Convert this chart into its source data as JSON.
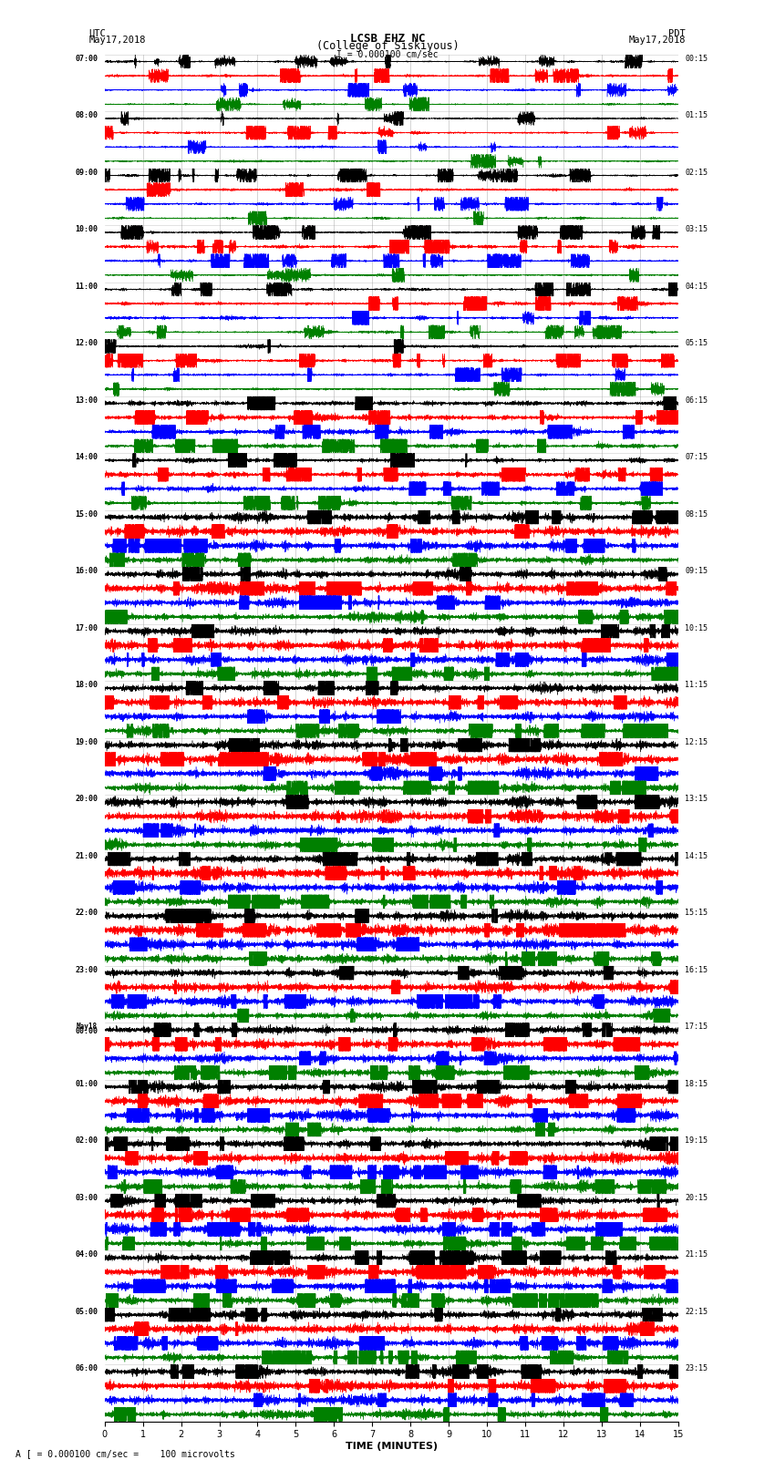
{
  "title_line1": "LCSB EHZ NC",
  "title_line2": "(College of Siskiyous)",
  "scale_text": "I = 0.000100 cm/sec",
  "left_header_line1": "UTC",
  "left_header_line2": "May17,2018",
  "right_header_line1": "PDT",
  "right_header_line2": "May17,2018",
  "bottom_note": "A [ = 0.000100 cm/sec =    100 microvolts",
  "xlabel": "TIME (MINUTES)",
  "xlim": [
    0,
    15
  ],
  "xticks": [
    0,
    1,
    2,
    3,
    4,
    5,
    6,
    7,
    8,
    9,
    10,
    11,
    12,
    13,
    14,
    15
  ],
  "left_times": [
    "07:00",
    "",
    "",
    "",
    "08:00",
    "",
    "",
    "",
    "09:00",
    "",
    "",
    "",
    "10:00",
    "",
    "",
    "",
    "11:00",
    "",
    "",
    "",
    "12:00",
    "",
    "",
    "",
    "13:00",
    "",
    "",
    "",
    "14:00",
    "",
    "",
    "",
    "15:00",
    "",
    "",
    "",
    "16:00",
    "",
    "",
    "",
    "17:00",
    "",
    "",
    "",
    "18:00",
    "",
    "",
    "",
    "19:00",
    "",
    "",
    "",
    "20:00",
    "",
    "",
    "",
    "21:00",
    "",
    "",
    "",
    "22:00",
    "",
    "",
    "",
    "23:00",
    "",
    "",
    "",
    "May18\n00:00",
    "",
    "",
    "",
    "01:00",
    "",
    "",
    "",
    "02:00",
    "",
    "",
    "",
    "03:00",
    "",
    "",
    "",
    "04:00",
    "",
    "",
    "",
    "05:00",
    "",
    "",
    "",
    "06:00",
    "",
    "",
    ""
  ],
  "right_times": [
    "00:15",
    "",
    "",
    "",
    "01:15",
    "",
    "",
    "",
    "02:15",
    "",
    "",
    "",
    "03:15",
    "",
    "",
    "",
    "04:15",
    "",
    "",
    "",
    "05:15",
    "",
    "",
    "",
    "06:15",
    "",
    "",
    "",
    "07:15",
    "",
    "",
    "",
    "08:15",
    "",
    "",
    "",
    "09:15",
    "",
    "",
    "",
    "10:15",
    "",
    "",
    "",
    "11:15",
    "",
    "",
    "",
    "12:15",
    "",
    "",
    "",
    "13:15",
    "",
    "",
    "",
    "14:15",
    "",
    "",
    "",
    "15:15",
    "",
    "",
    "",
    "16:15",
    "",
    "",
    "",
    "17:15",
    "",
    "",
    "",
    "18:15",
    "",
    "",
    "",
    "19:15",
    "",
    "",
    "",
    "20:15",
    "",
    "",
    "",
    "21:15",
    "",
    "",
    "",
    "22:15",
    "",
    "",
    "",
    "23:15",
    "",
    "",
    ""
  ],
  "colors": [
    "black",
    "red",
    "blue",
    "green"
  ],
  "n_rows": 96,
  "n_points": 9000,
  "fig_width": 8.5,
  "fig_height": 16.13,
  "bg_color": "white",
  "vline_color": "#aaaaaa",
  "vline_positions": [
    1,
    2,
    3,
    4,
    5,
    6,
    7,
    8,
    9,
    10,
    11,
    12,
    13,
    14
  ]
}
